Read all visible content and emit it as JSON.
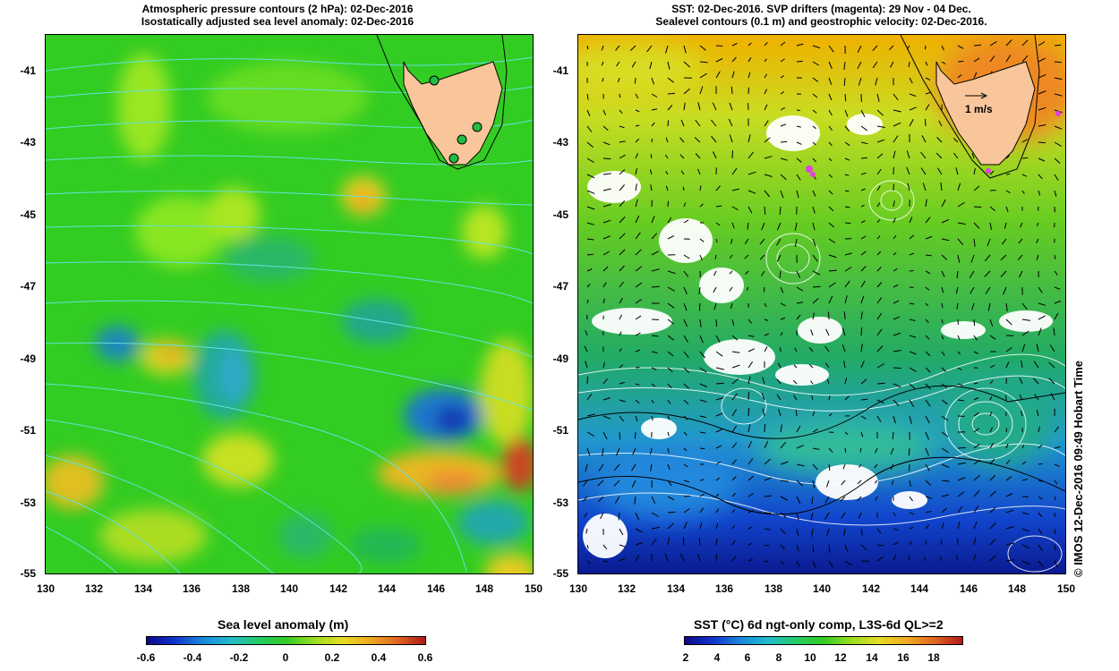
{
  "left_panel": {
    "title_line1": "Atmospheric pressure contours (2 hPa): 02-Dec-2016",
    "title_line2": "Isostatically adjusted sea level anomaly: 02-Dec-2016",
    "y_ticks": [
      "-41",
      "-43",
      "-45",
      "-47",
      "-49",
      "-51",
      "-53",
      "-55"
    ],
    "x_ticks": [
      "130",
      "132",
      "134",
      "136",
      "138",
      "140",
      "142",
      "144",
      "146",
      "148",
      "150"
    ],
    "colorbar": {
      "title": "Sea level anomaly (m)",
      "ticks": [
        "-0.6",
        "-0.4",
        "-0.2",
        "0",
        "0.2",
        "0.4",
        "0.6"
      ],
      "range": [
        -0.6,
        0.6
      ]
    }
  },
  "right_panel": {
    "title_line1": "SST: 02-Dec-2016. SVP drifters (magenta): 29 Nov - 04 Dec.",
    "title_line2": "Sealevel contours (0.1 m) and geostrophic velocity: 02-Dec-2016.",
    "y_ticks": [
      "-41",
      "-43",
      "-45",
      "-47",
      "-49",
      "-51",
      "-53",
      "-55"
    ],
    "x_ticks": [
      "130",
      "132",
      "134",
      "136",
      "138",
      "140",
      "142",
      "144",
      "146",
      "148",
      "150"
    ],
    "velocity_scale_label": "1 m/s",
    "colorbar": {
      "title": "SST (°C) 6d ngt-only comp, L3S-6d QL>=2",
      "ticks": [
        "2",
        "4",
        "6",
        "8",
        "10",
        "12",
        "14",
        "16",
        "18"
      ],
      "range": [
        1,
        19
      ]
    }
  },
  "credit": "© IMOS 12-Dec-2016 09:49 Hobart Time",
  "colors": {
    "land": "#f8c69a",
    "contour_cyan": "#66e0e0",
    "drifter_magenta": "#e040e0",
    "tide_gauge_green": "#22bb44"
  }
}
